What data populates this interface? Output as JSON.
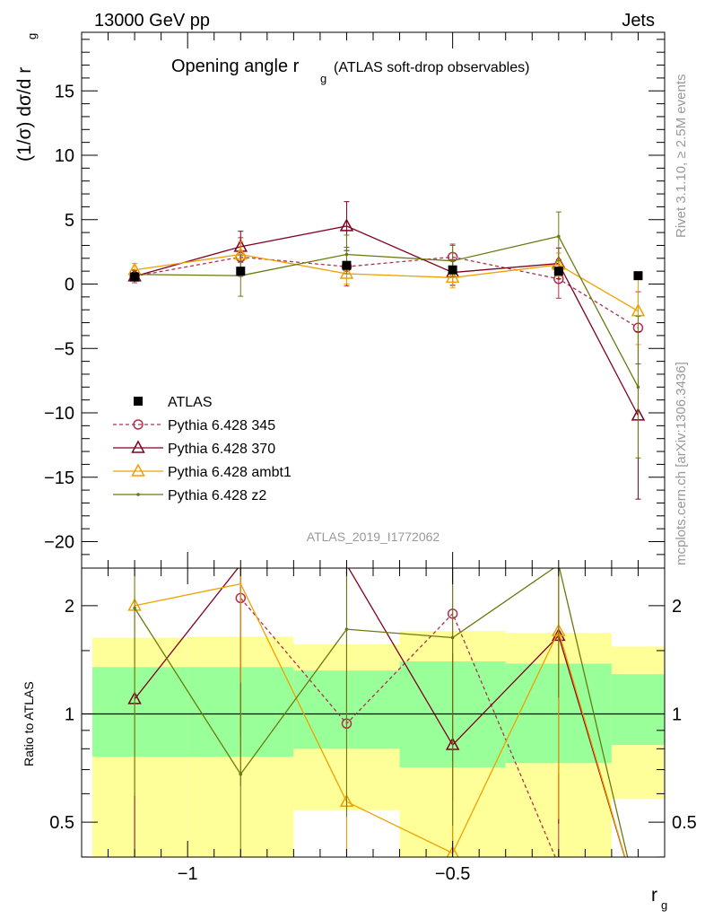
{
  "header": {
    "energy_label": "13000 GeV pp",
    "process_label": "Jets",
    "side_label_top": "Rivet 3.1.10, ≥ 2.5M events",
    "side_label_bottom": "mcplots.cern.ch [arXiv:1306.3436]",
    "analysis_id": "ATLAS_2019_I1772062"
  },
  "chart_data": [
    {
      "type": "line",
      "title": "Opening angle r",
      "title_sub": "g",
      "title_suffix": "(ATLAS soft-drop observables)",
      "ylabel": "(1/σ) dσ/d r",
      "ylabel_sub": "g",
      "xlim": [
        -1.2,
        -0.1
      ],
      "ylim": [
        -22,
        20
      ],
      "yticks": [
        -20,
        -15,
        -10,
        -5,
        0,
        5,
        10,
        15
      ],
      "ytick_labels": [
        "−20",
        "−15",
        "−10",
        "−5",
        "0",
        "5",
        "10",
        "15"
      ],
      "x": [
        -1.1,
        -0.9,
        -0.7,
        -0.5,
        -0.3,
        -0.15
      ],
      "data": {
        "name": "ATLAS",
        "values": [
          0.55,
          1.0,
          1.45,
          1.1,
          1.0,
          0.65
        ]
      },
      "series": [
        {
          "name": "Pythia 6.428 345",
          "color": "#b03050",
          "dash": true,
          "marker": "open-circle",
          "values": [
            0.6,
            2.1,
            1.35,
            2.1,
            0.4,
            -3.4
          ],
          "err": [
            0.5,
            1.5,
            1.5,
            1.0,
            1.5,
            2.8
          ]
        },
        {
          "name": "Pythia 6.428 370",
          "color": "#800020",
          "dash": false,
          "marker": "open-triangle",
          "values": [
            0.6,
            2.9,
            4.5,
            0.9,
            1.6,
            -10.2
          ],
          "err": [
            0.3,
            1.2,
            1.9,
            1.0,
            1.2,
            6.5
          ]
        },
        {
          "name": "Pythia 6.428 ambt1",
          "color": "#f0a000",
          "dash": false,
          "marker": "open-triangle",
          "values": [
            1.1,
            2.3,
            0.8,
            0.5,
            1.5,
            -2.1
          ],
          "err": [
            0.5,
            1.0,
            0.8,
            0.8,
            0.9,
            2.6
          ]
        },
        {
          "name": "Pythia 6.428 z2",
          "color": "#6a7a10",
          "dash": false,
          "marker": "dot",
          "values": [
            0.75,
            0.65,
            2.3,
            1.8,
            3.7,
            -8.0
          ],
          "err": [
            0.3,
            1.6,
            1.5,
            1.2,
            1.9,
            5.5
          ]
        }
      ]
    },
    {
      "type": "line",
      "ylabel": "Ratio to ATLAS",
      "xlabel": "r",
      "xlabel_sub": "g",
      "xlim": [
        -1.2,
        -0.1
      ],
      "ylim": [
        0.33,
        2.3
      ],
      "yticks": [
        0.5,
        1,
        2
      ],
      "ytick_labels": [
        "0.5",
        "1",
        "2"
      ],
      "xticks": [
        -1,
        -0.5
      ],
      "xtick_labels": [
        "−1",
        "−0.5"
      ],
      "bands": {
        "bins": [
          [
            -1.2,
            -1.0
          ],
          [
            -1.0,
            -0.8
          ],
          [
            -0.8,
            -0.6
          ],
          [
            -0.6,
            -0.4
          ],
          [
            -0.4,
            -0.2
          ],
          [
            -0.2,
            -0.1
          ]
        ],
        "yellow_lo": [
          0.4,
          0.39,
          0.54,
          0.34,
          0.33,
          0.58
        ],
        "yellow_hi": [
          1.63,
          1.64,
          1.56,
          1.7,
          1.68,
          1.54
        ],
        "green_lo": [
          0.76,
          0.76,
          0.8,
          0.71,
          0.73,
          0.82
        ],
        "green_hi": [
          1.35,
          1.35,
          1.32,
          1.4,
          1.38,
          1.29
        ]
      },
      "series": [
        {
          "name": "Pythia 6.428 345",
          "values": [
            null,
            2.1,
            0.94,
            1.9,
            0.38,
            0.0
          ]
        },
        {
          "name": "Pythia 6.428 370",
          "values": [
            1.1,
            2.9,
            3.1,
            0.82,
            1.65,
            0.0
          ]
        },
        {
          "name": "Pythia 6.428 ambt1",
          "values": [
            2.0,
            2.3,
            0.57,
            0.41,
            1.7,
            0.0
          ]
        },
        {
          "name": "Pythia 6.428 z2",
          "values": [
            1.97,
            0.68,
            1.72,
            1.63,
            3.7,
            0.0
          ]
        }
      ]
    }
  ]
}
